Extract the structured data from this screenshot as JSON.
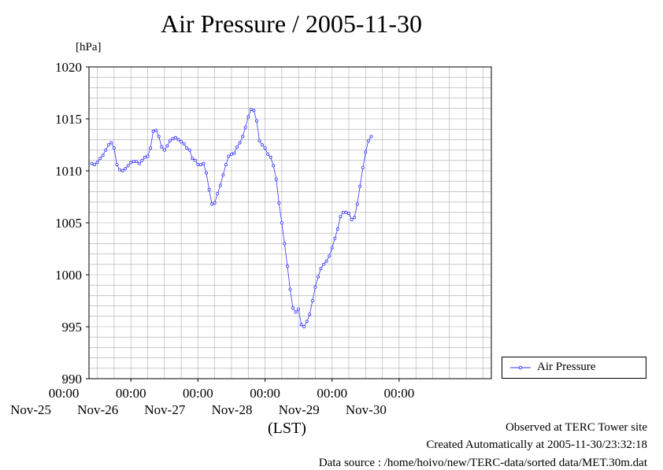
{
  "chart_data": {
    "type": "line",
    "title": "Air Pressure / 2005-11-30",
    "ylabel": "[hPa]",
    "xlabel": "(LST)",
    "ylim": [
      990,
      1020
    ],
    "yticks": [
      990,
      995,
      1000,
      1005,
      1010,
      1015,
      1020
    ],
    "xlim_hours": [
      0,
      144
    ],
    "xticks": [
      {
        "time": "00:00",
        "date": "Nov-25"
      },
      {
        "time": "00:00",
        "date": "Nov-26"
      },
      {
        "time": "00:00",
        "date": "Nov-27"
      },
      {
        "time": "00:00",
        "date": "Nov-28"
      },
      {
        "time": "00:00",
        "date": "Nov-29"
      },
      {
        "time": "00:00",
        "date": "Nov-30"
      }
    ],
    "grid": true,
    "legend_position": "right",
    "series": [
      {
        "name": "Air Pressure",
        "color": "#3333ff",
        "marker": "circle",
        "points": [
          [
            "Nov-24 10:00",
            1010.7
          ],
          [
            "Nov-24 11:00",
            1010.6
          ],
          [
            "Nov-24 12:00",
            1010.8
          ],
          [
            "Nov-24 13:00",
            1011.2
          ],
          [
            "Nov-24 14:00",
            1011.5
          ],
          [
            "Nov-24 15:00",
            1012.0
          ],
          [
            "Nov-24 16:00",
            1012.5
          ],
          [
            "Nov-24 17:00",
            1012.7
          ],
          [
            "Nov-24 18:00",
            1012.2
          ],
          [
            "Nov-24 19:00",
            1010.6
          ],
          [
            "Nov-24 20:00",
            1010.1
          ],
          [
            "Nov-24 21:00",
            1010.0
          ],
          [
            "Nov-24 22:00",
            1010.2
          ],
          [
            "Nov-24 23:00",
            1010.5
          ],
          [
            "Nov-25 00:00",
            1010.8
          ],
          [
            "Nov-25 01:00",
            1010.9
          ],
          [
            "Nov-25 02:00",
            1010.9
          ],
          [
            "Nov-25 03:00",
            1010.7
          ],
          [
            "Nov-25 04:00",
            1011.0
          ],
          [
            "Nov-25 05:00",
            1011.3
          ],
          [
            "Nov-25 06:00",
            1011.4
          ],
          [
            "Nov-25 07:00",
            1012.2
          ],
          [
            "Nov-25 08:00",
            1013.8
          ],
          [
            "Nov-25 09:00",
            1013.9
          ],
          [
            "Nov-25 10:00",
            1013.3
          ],
          [
            "Nov-25 11:00",
            1012.3
          ],
          [
            "Nov-25 12:00",
            1012.0
          ],
          [
            "Nov-25 13:00",
            1012.4
          ],
          [
            "Nov-25 14:00",
            1012.9
          ],
          [
            "Nov-25 15:00",
            1013.1
          ],
          [
            "Nov-25 16:00",
            1013.2
          ],
          [
            "Nov-25 17:00",
            1013.0
          ],
          [
            "Nov-25 18:00",
            1012.8
          ],
          [
            "Nov-25 19:00",
            1012.6
          ],
          [
            "Nov-25 20:00",
            1012.2
          ],
          [
            "Nov-25 21:00",
            1012.0
          ],
          [
            "Nov-25 22:00",
            1011.2
          ],
          [
            "Nov-25 23:00",
            1011.0
          ],
          [
            "Nov-26 00:00",
            1010.6
          ],
          [
            "Nov-26 01:00",
            1010.6
          ],
          [
            "Nov-26 02:00",
            1010.7
          ],
          [
            "Nov-26 03:00",
            1009.8
          ],
          [
            "Nov-26 04:00",
            1008.2
          ],
          [
            "Nov-26 05:00",
            1006.8
          ],
          [
            "Nov-26 06:00",
            1006.9
          ],
          [
            "Nov-26 07:00",
            1007.8
          ],
          [
            "Nov-26 08:00",
            1008.6
          ],
          [
            "Nov-26 09:00",
            1009.6
          ],
          [
            "Nov-26 10:00",
            1010.6
          ],
          [
            "Nov-26 11:00",
            1011.4
          ],
          [
            "Nov-26 12:00",
            1011.6
          ],
          [
            "Nov-26 13:00",
            1011.7
          ],
          [
            "Nov-26 14:00",
            1012.3
          ],
          [
            "Nov-26 15:00",
            1012.7
          ],
          [
            "Nov-26 16:00",
            1013.3
          ],
          [
            "Nov-26 17:00",
            1014.2
          ],
          [
            "Nov-26 18:00",
            1015.2
          ],
          [
            "Nov-26 19:00",
            1015.9
          ],
          [
            "Nov-26 20:00",
            1015.8
          ],
          [
            "Nov-26 21:00",
            1014.8
          ],
          [
            "Nov-26 22:00",
            1012.9
          ],
          [
            "Nov-26 23:00",
            1012.5
          ],
          [
            "Nov-27 00:00",
            1012.2
          ],
          [
            "Nov-27 01:00",
            1011.6
          ],
          [
            "Nov-27 02:00",
            1011.3
          ],
          [
            "Nov-27 03:00",
            1010.5
          ],
          [
            "Nov-27 04:00",
            1009.2
          ],
          [
            "Nov-27 05:00",
            1006.9
          ],
          [
            "Nov-27 06:00",
            1005.0
          ],
          [
            "Nov-27 07:00",
            1003.0
          ],
          [
            "Nov-27 08:00",
            1000.8
          ],
          [
            "Nov-27 09:00",
            998.6
          ],
          [
            "Nov-27 10:00",
            996.8
          ],
          [
            "Nov-27 11:00",
            996.4
          ],
          [
            "Nov-27 12:00",
            996.7
          ],
          [
            "Nov-27 13:00",
            995.2
          ],
          [
            "Nov-27 14:00",
            995.0
          ],
          [
            "Nov-27 15:00",
            995.5
          ],
          [
            "Nov-27 16:00",
            996.2
          ],
          [
            "Nov-27 17:00",
            997.5
          ],
          [
            "Nov-27 18:00",
            998.8
          ],
          [
            "Nov-27 19:00",
            999.8
          ],
          [
            "Nov-27 20:00",
            1000.6
          ],
          [
            "Nov-27 21:00",
            1001.0
          ],
          [
            "Nov-27 22:00",
            1001.3
          ],
          [
            "Nov-27 23:00",
            1001.8
          ],
          [
            "Nov-28 00:00",
            1002.6
          ],
          [
            "Nov-28 01:00",
            1003.5
          ],
          [
            "Nov-28 02:00",
            1004.4
          ],
          [
            "Nov-28 03:00",
            1005.6
          ],
          [
            "Nov-28 04:00",
            1006.0
          ],
          [
            "Nov-28 05:00",
            1006.0
          ],
          [
            "Nov-28 06:00",
            1005.9
          ],
          [
            "Nov-28 07:00",
            1005.3
          ],
          [
            "Nov-28 08:00",
            1005.5
          ],
          [
            "Nov-28 09:00",
            1006.8
          ],
          [
            "Nov-28 10:00",
            1008.5
          ],
          [
            "Nov-28 11:00",
            1010.3
          ],
          [
            "Nov-28 12:00",
            1011.8
          ],
          [
            "Nov-28 13:00",
            1012.9
          ],
          [
            "Nov-28 14:00",
            1013.3
          ]
        ]
      }
    ]
  },
  "footer": {
    "site": "Observed at TERC Tower site",
    "created": "Created Automatically at 2005-11-30/23:32:18",
    "source": "Data source : /home/hoivo/new/TERC-data/sorted  data/MET.30m.dat"
  }
}
